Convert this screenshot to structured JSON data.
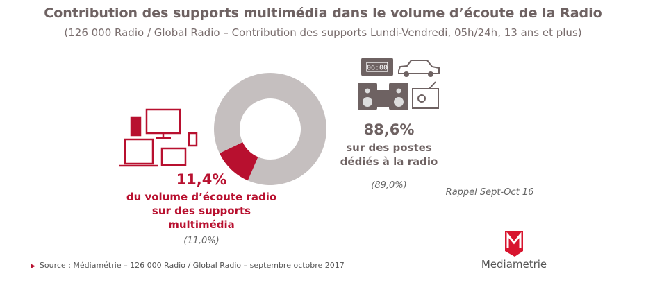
{
  "title": "Contribution des supports multimédia dans le volume d’écoute de la Radio",
  "subtitle": "(126 000 Radio / Global Radio – Contribution des supports Lundi-Vendredi, 05h/24h, 13 ans et plus)",
  "chart_data": {
    "type": "pie",
    "donut": true,
    "title": "Contribution des supports multimédia dans le volume d’écoute de la Radio",
    "slices": [
      {
        "label": "du volume d’écoute radio sur des supports multimédia",
        "value": 11.4,
        "display": "11,4%",
        "previous": "(11,0%)",
        "color": "#b8102f"
      },
      {
        "label": "sur des postes dédiés à la radio",
        "value": 88.6,
        "display": "88,6%",
        "previous": "(89,0%)",
        "color": "#c5bfbf"
      }
    ]
  },
  "labels": {
    "red_line1": "du volume d’écoute radio",
    "red_line2": "sur des supports",
    "red_line3": "multimédia",
    "grey_line1": "sur des postes",
    "grey_line2": "dédiés à la radio",
    "rappel": "Rappel Sept-Oct 16",
    "clock_display": "06:00"
  },
  "source": "Source : Médiamétrie –  126 000 Radio / Global Radio – septembre octobre 2017",
  "logo": "Mediametrie",
  "icons": [
    "multimedia-devices-icon",
    "clock-radio-icon",
    "car-icon",
    "hifi-stereo-icon",
    "radio-set-icon",
    "mediametrie-logo-icon"
  ]
}
